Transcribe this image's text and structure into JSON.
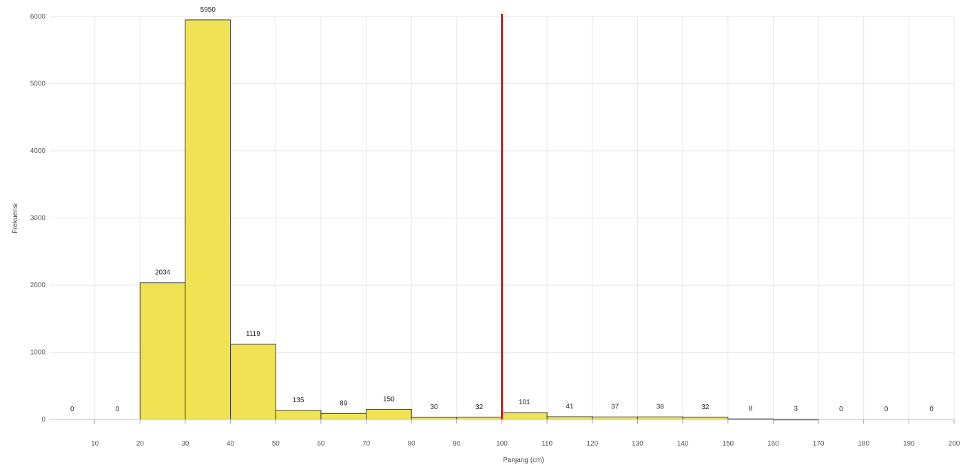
{
  "chart_data": {
    "type": "bar",
    "bin_edges": [
      0,
      10,
      20,
      30,
      40,
      50,
      60,
      70,
      80,
      90,
      100,
      110,
      120,
      130,
      140,
      150,
      160,
      170,
      180,
      190,
      200
    ],
    "values": [
      0,
      0,
      2034,
      5950,
      1119,
      135,
      89,
      150,
      30,
      32,
      101,
      41,
      37,
      38,
      32,
      8,
      3,
      0,
      0,
      0
    ],
    "data_labels": [
      "0",
      "0",
      "2034",
      "5950",
      "1119",
      "135",
      "89",
      "150",
      "30",
      "32",
      "101",
      "41",
      "37",
      "38",
      "32",
      "8",
      "3",
      "0",
      "0",
      "0"
    ],
    "x_tick_labels": [
      "10",
      "20",
      "30",
      "40",
      "50",
      "60",
      "70",
      "80",
      "90",
      "100",
      "110",
      "120",
      "130",
      "140",
      "150",
      "160",
      "170",
      "180",
      "190",
      "200"
    ],
    "y_tick_labels": [
      "0",
      "1000",
      "2000",
      "3000",
      "4000",
      "5000",
      "6000"
    ],
    "y_ticks": [
      0,
      1000,
      2000,
      3000,
      4000,
      5000,
      6000
    ],
    "xlabel": "Panjang (cm)",
    "ylabel": "Frekuensi",
    "xlim": [
      0,
      200
    ],
    "ylim": [
      0,
      6000
    ],
    "grid": true,
    "reference_line": {
      "x": 100,
      "color": "#d21f1f"
    },
    "bar_color": "#efe354"
  }
}
